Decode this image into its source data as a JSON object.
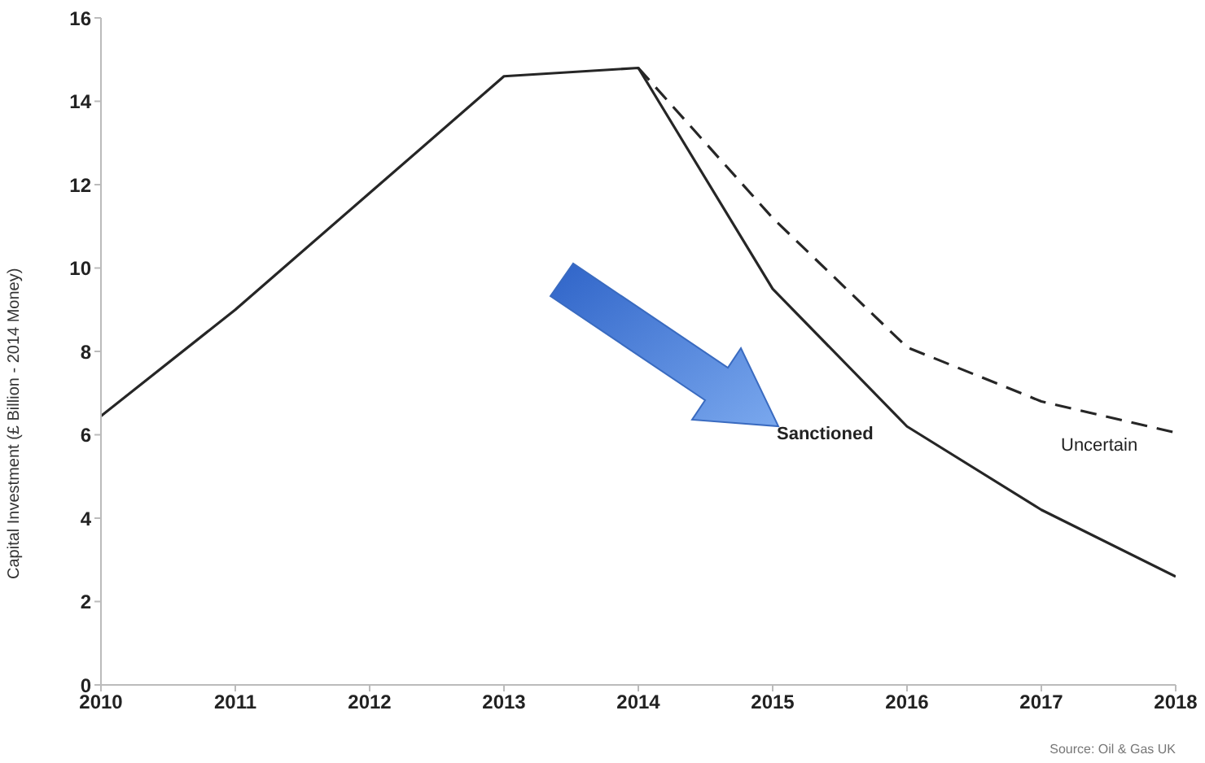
{
  "chart_data": {
    "type": "line",
    "ylabel": "Capital Investment (£ Billion - 2014 Money)",
    "x": [
      2010,
      2011,
      2012,
      2013,
      2014,
      2015,
      2016,
      2017,
      2018
    ],
    "series": [
      {
        "name": "Sanctioned",
        "color": "#262626",
        "line_style": "solid",
        "values": [
          6.45,
          9.0,
          11.8,
          14.6,
          14.8,
          9.5,
          6.2,
          4.2,
          2.6
        ]
      },
      {
        "name": "Uncertain",
        "color": "#262626",
        "line_style": "dashed",
        "values": [
          null,
          null,
          null,
          null,
          14.8,
          11.2,
          8.1,
          6.8,
          6.05
        ]
      }
    ],
    "xlim": [
      2010,
      2018
    ],
    "xticks": [
      2010,
      2011,
      2012,
      2013,
      2014,
      2015,
      2016,
      2017,
      2018
    ],
    "ylim": [
      0,
      16
    ],
    "yticks": [
      0,
      2,
      4,
      6,
      8,
      10,
      12,
      14,
      16
    ],
    "grid": false,
    "legend": false,
    "marker": "none",
    "annotations": [
      "Source: Oil & Gas UK"
    ]
  }
}
